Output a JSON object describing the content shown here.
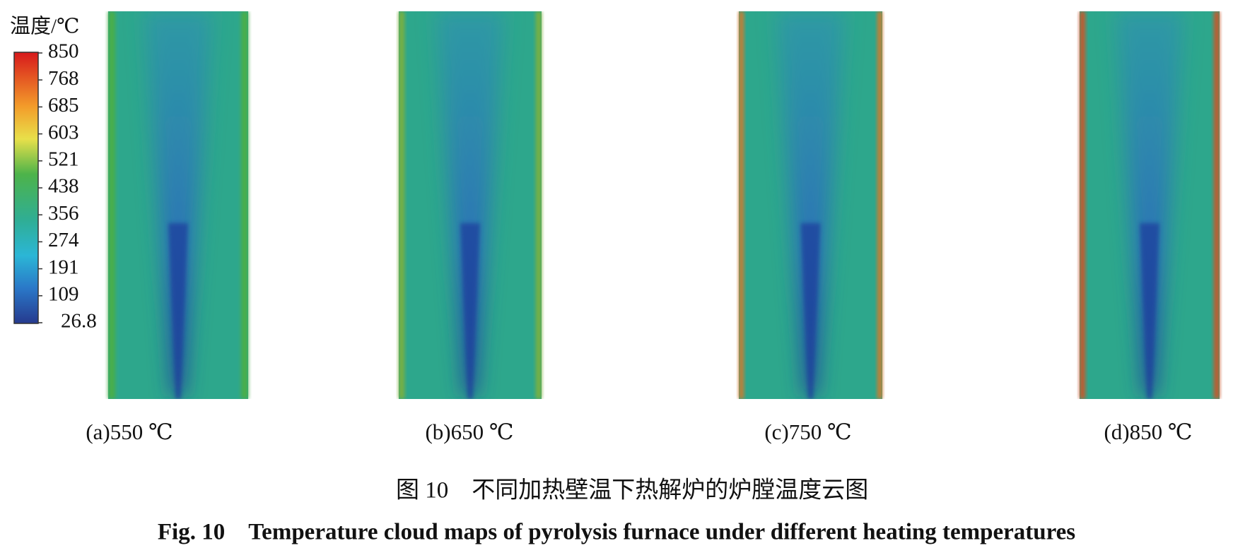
{
  "legend": {
    "title": "温度/℃",
    "ticks": [
      "850",
      "768",
      "685",
      "603",
      "521",
      "438",
      "356",
      "274",
      "191",
      "109",
      "26.8"
    ]
  },
  "panels": [
    {
      "caption": "(a)550 ℃"
    },
    {
      "caption": "(b)650 ℃"
    },
    {
      "caption": "(c)750 ℃"
    },
    {
      "caption": "(d)850 ℃"
    }
  ],
  "figure": {
    "caption_cn": "图 10　不同加热壁温下热解炉的炉膛温度云图",
    "caption_en": "Fig. 10　Temperature cloud maps of pyrolysis furnace under different heating temperatures"
  }
}
